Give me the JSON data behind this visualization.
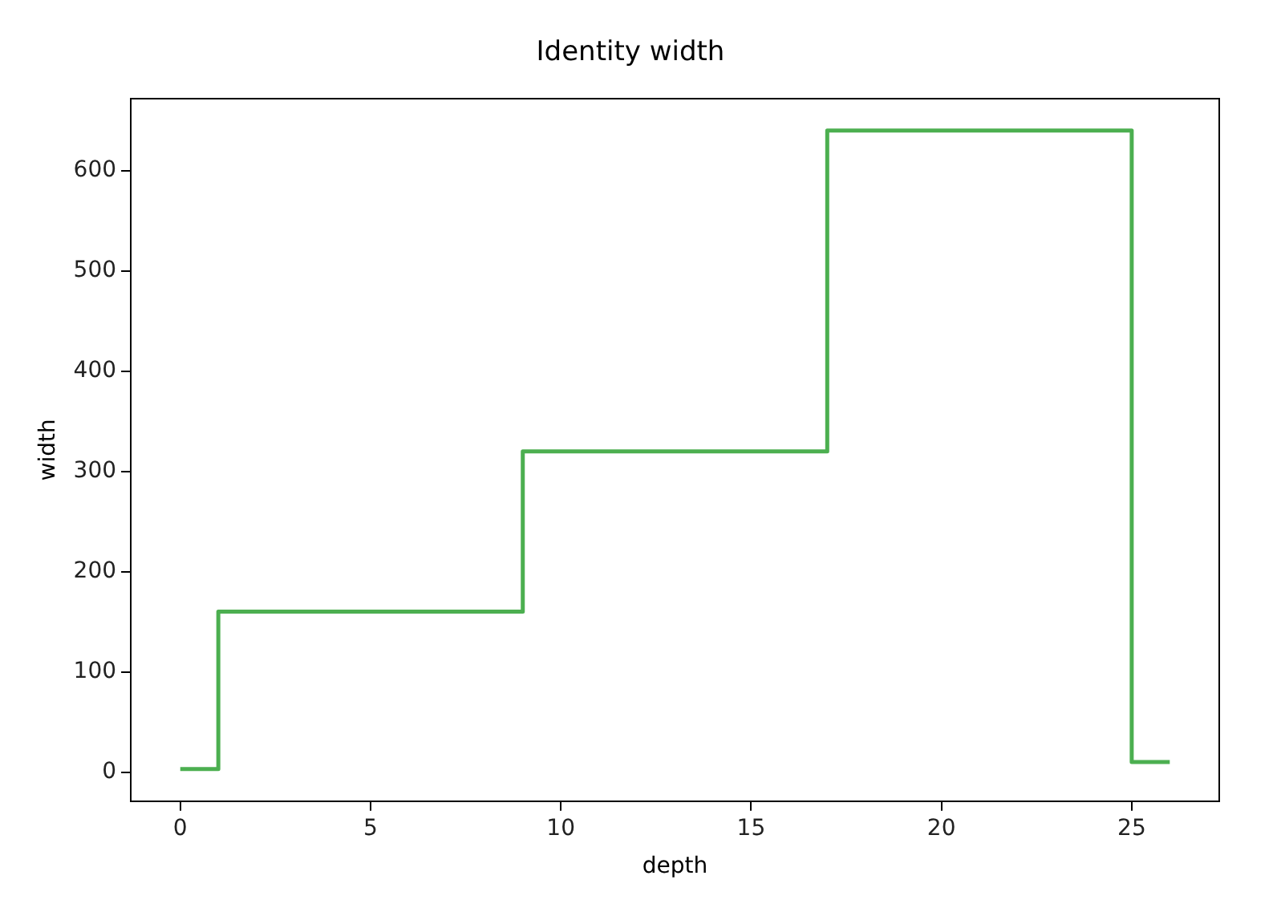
{
  "chart_data": {
    "type": "step",
    "title": "Identity width",
    "xlabel": "depth",
    "ylabel": "width",
    "x": [
      0,
      1,
      9,
      17,
      25,
      26
    ],
    "series": [
      {
        "color": "#4caf50",
        "values": [
          3,
          160,
          320,
          640,
          10,
          10
        ]
      }
    ],
    "xlim": [
      -1.3,
      27.3
    ],
    "xticks": [
      0,
      5,
      10,
      15,
      20,
      25
    ],
    "ylim": [
      -29,
      672
    ],
    "yticks": [
      0,
      100,
      200,
      300,
      400,
      500,
      600
    ],
    "grid": false,
    "legend": false
  }
}
